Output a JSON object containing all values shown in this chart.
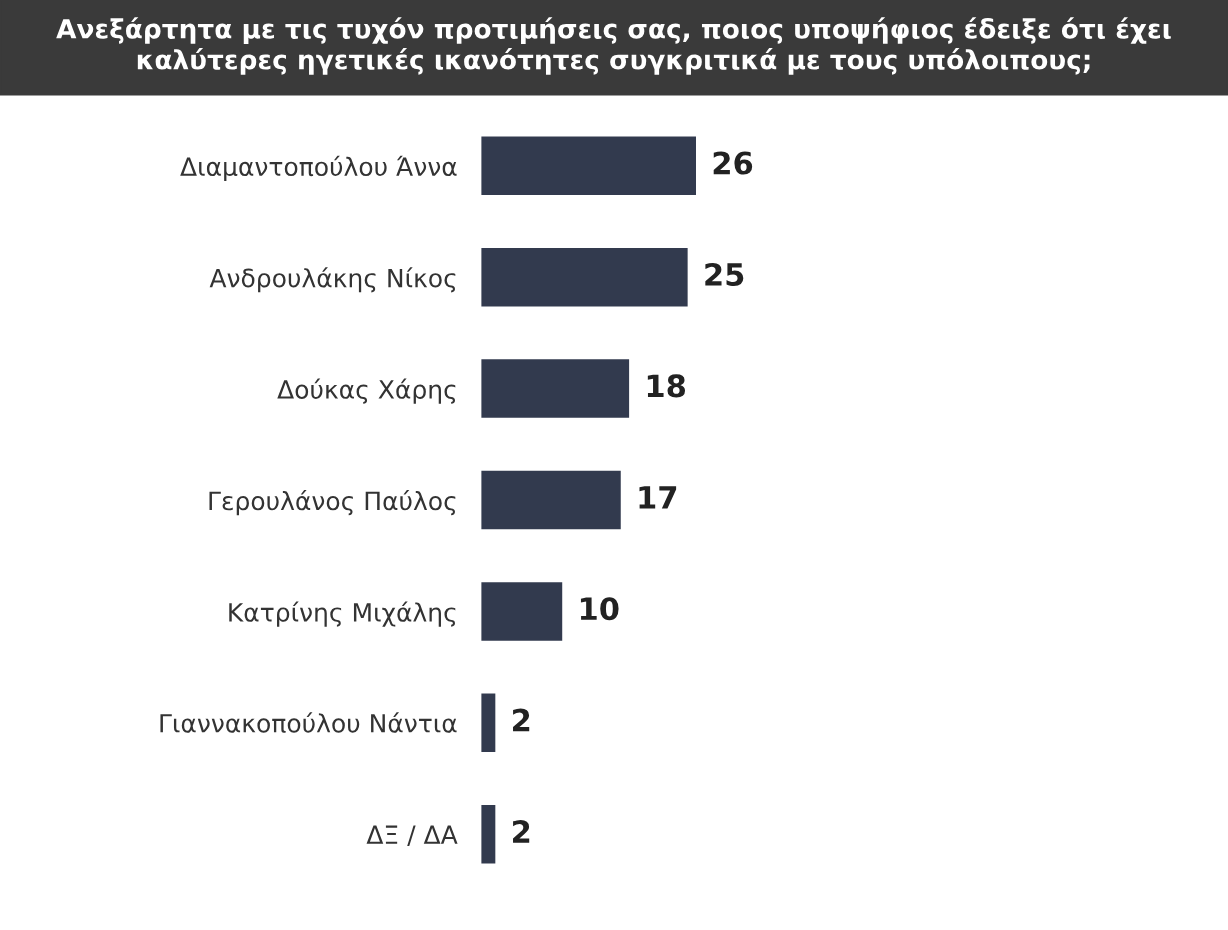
{
  "chart_data": {
    "type": "bar",
    "orientation": "horizontal",
    "title": "Ανεξάρτητα με τις τυχόν προτιμήσεις σας, ποιος υποψήφιος έδειξε ότι έχει καλύτερες ηγετικές ικανότητες συγκριτικά με τους υπόλοιπους;",
    "categories": [
      "Διαμαντοπούλου Άννα",
      "Ανδρουλάκης Νίκος",
      "Δούκας Χάρης",
      "Γερουλάνος Παύλος",
      "Κατρίνης Μιχάλης",
      "Γιαννακοπούλου Νάντια",
      "ΔΞ / ΔΑ"
    ],
    "values": [
      26,
      25,
      18,
      17,
      10,
      2,
      2
    ],
    "color": "#323a4e",
    "data_labels": true
  }
}
